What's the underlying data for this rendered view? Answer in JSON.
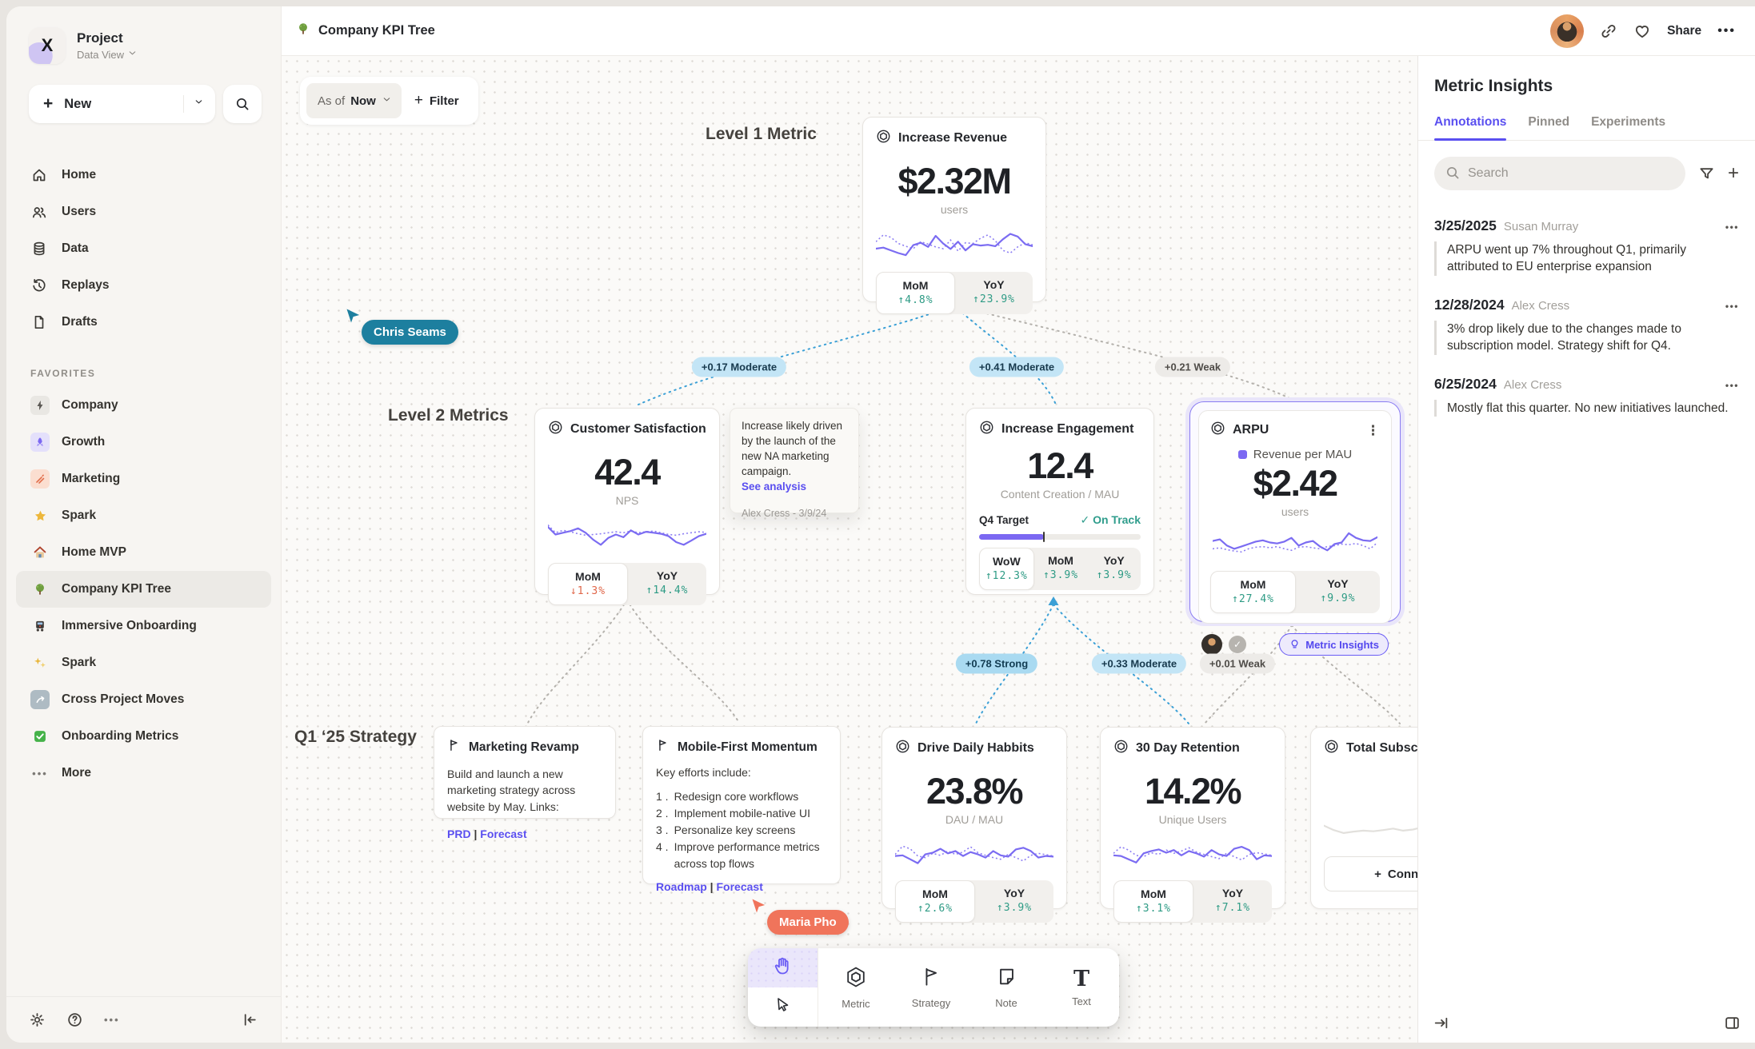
{
  "app": {
    "topbar": {
      "title": "Company KPI Tree",
      "share_label": "Share"
    },
    "sidebar": {
      "project": {
        "name": "Project",
        "view": "Data View"
      },
      "new_label": "New",
      "nav": [
        {
          "icon": "home",
          "label": "Home"
        },
        {
          "icon": "users",
          "label": "Users"
        },
        {
          "icon": "data",
          "label": "Data"
        },
        {
          "icon": "replays",
          "label": "Replays"
        },
        {
          "icon": "drafts",
          "label": "Drafts"
        }
      ],
      "favorites_label": "FAVORITES",
      "favorites": [
        {
          "icon": "bolt",
          "label": "Company"
        },
        {
          "icon": "rocket",
          "label": "Growth"
        },
        {
          "icon": "marketing",
          "label": "Marketing"
        },
        {
          "icon": "star",
          "label": "Spark"
        },
        {
          "icon": "house",
          "label": "Home MVP"
        },
        {
          "icon": "tree",
          "label": "Company KPI Tree",
          "active": true
        },
        {
          "icon": "train",
          "label": "Immersive Onboarding"
        },
        {
          "icon": "sparkles",
          "label": "Spark"
        },
        {
          "icon": "wave",
          "label": "Cross Project Moves"
        },
        {
          "icon": "check",
          "label": "Onboarding Metrics"
        },
        {
          "icon": "dots",
          "label": "More"
        }
      ]
    },
    "canvas": {
      "asof_label": "As of",
      "asof_value": "Now",
      "filter_label": "Filter",
      "level1_label": "Level 1 Metric",
      "level2_label": "Level 2 Metrics",
      "strategy_label": "Q1 ‘25 Strategy",
      "cursors": [
        {
          "name": "Chris Seams",
          "color": "#1d7f9f"
        },
        {
          "name": "Maria Pho",
          "color": "#f0745b"
        }
      ],
      "chips": [
        {
          "label": "+0.17 Moderate",
          "strength": "moderate"
        },
        {
          "label": "+0.41 Moderate",
          "strength": "moderate"
        },
        {
          "label": "+0.21 Weak",
          "strength": "weak"
        },
        {
          "label": "+0.78 Strong",
          "strength": "strong"
        },
        {
          "label": "+0.33 Moderate",
          "strength": "moderate"
        },
        {
          "label": "+0.01 Weak",
          "strength": "weak"
        }
      ],
      "toolbar": {
        "metric_label": "Metric",
        "strategy_label": "Strategy",
        "note_label": "Note",
        "text_label": "Text"
      }
    },
    "cards": {
      "revenue": {
        "title": "Increase Revenue",
        "value": "$2.32M",
        "unit": "users",
        "stats": [
          {
            "label": "MoM",
            "value": "↑4.8%",
            "dir": "up"
          },
          {
            "label": "YoY",
            "value": "↑23.9%",
            "dir": "up"
          }
        ],
        "sparkline": {
          "solid": [
            0.35,
            0.38,
            0.3,
            0.22,
            0.16,
            0.45,
            0.52,
            0.4,
            0.72,
            0.5,
            0.34,
            0.55,
            0.3,
            0.48,
            0.44,
            0.46,
            0.42,
            0.62,
            0.78,
            0.7,
            0.48,
            0.42
          ],
          "dotted": [
            0.55,
            0.75,
            0.68,
            0.5,
            0.42,
            0.35,
            0.55,
            0.48,
            0.4,
            0.35,
            0.6,
            0.28,
            0.52,
            0.5,
            0.65,
            0.75,
            0.58,
            0.3,
            0.22,
            0.4,
            0.52,
            0.46
          ]
        }
      },
      "satisfaction": {
        "title": "Customer Satisfaction",
        "value": "42.4",
        "unit": "NPS",
        "stats": [
          {
            "label": "MoM",
            "value": "↓1.3%",
            "dir": "down"
          },
          {
            "label": "YoY",
            "value": "↑14.4%",
            "dir": "up"
          }
        ],
        "sparkline": {
          "solid": [
            0.72,
            0.5,
            0.55,
            0.6,
            0.68,
            0.55,
            0.35,
            0.2,
            0.4,
            0.5,
            0.42,
            0.62,
            0.5,
            0.58,
            0.55,
            0.52,
            0.45,
            0.28,
            0.2,
            0.32,
            0.45,
            0.52
          ],
          "dotted": [
            0.78,
            0.55,
            0.62,
            0.58,
            0.52,
            0.48,
            0.5,
            0.52,
            0.55,
            0.58,
            0.55,
            0.6,
            0.55,
            0.58,
            0.6,
            0.55,
            0.5,
            0.48,
            0.52,
            0.55,
            0.58,
            0.56
          ]
        }
      },
      "engagement": {
        "title": "Increase Engagement",
        "value": "12.4",
        "unit": "Content Creation / MAU",
        "target": {
          "label": "Q4 Target",
          "status": "On Track",
          "progress": 0.4
        },
        "stats": [
          {
            "label": "WoW",
            "value": "↑12.3%",
            "dir": "up"
          },
          {
            "label": "MoM",
            "value": "↑3.9%",
            "dir": "up"
          },
          {
            "label": "YoY",
            "value": "↑3.9%",
            "dir": "up"
          }
        ]
      },
      "arpu": {
        "title": "ARPU",
        "legend": "Revenue per MAU",
        "value": "$2.42",
        "unit": "users",
        "badge": "Metric Insights",
        "stats": [
          {
            "label": "MoM",
            "value": "↑27.4%",
            "dir": "up"
          },
          {
            "label": "YoY",
            "value": "↑9.9%",
            "dir": "up"
          }
        ],
        "sparkline": {
          "solid": [
            0.6,
            0.65,
            0.45,
            0.35,
            0.42,
            0.5,
            0.58,
            0.62,
            0.55,
            0.52,
            0.58,
            0.7,
            0.45,
            0.55,
            0.6,
            0.42,
            0.3,
            0.5,
            0.55,
            0.85,
            0.7,
            0.62,
            0.6,
            0.72
          ],
          "dotted": [
            0.35,
            0.38,
            0.32,
            0.28,
            0.25,
            0.35,
            0.4,
            0.42,
            0.38,
            0.42,
            0.35,
            0.3,
            0.4,
            0.42,
            0.38,
            0.35,
            0.42,
            0.45,
            0.5,
            0.48,
            0.52,
            0.45,
            0.35,
            0.55
          ]
        }
      },
      "note": {
        "text": "Increase likely driven by the launch of the new NA marketing campaign.",
        "link": "See analysis",
        "author": "Alex Cress - 3/9/24"
      },
      "marketing_revamp": {
        "title": "Marketing Revamp",
        "body": "Build and launch a new marketing strategy across website by May. Links:",
        "links": [
          "PRD",
          "Forecast"
        ]
      },
      "mobile_first": {
        "title": "Mobile-First Momentum",
        "intro": "Key efforts include:",
        "items": [
          "Redesign core workflows",
          "Implement mobile-native UI",
          "Personalize key screens",
          "Improve performance metrics across top flows"
        ],
        "links": [
          "Roadmap",
          "Forecast"
        ]
      },
      "daily_habits": {
        "title": "Drive Daily Habbits",
        "value": "23.8%",
        "unit": "DAU / MAU",
        "stats": [
          {
            "label": "MoM",
            "value": "↑2.6%",
            "dir": "up"
          },
          {
            "label": "YoY",
            "value": "↑3.9%",
            "dir": "up"
          }
        ],
        "sparkline": {
          "solid": [
            0.4,
            0.42,
            0.3,
            0.18,
            0.45,
            0.5,
            0.62,
            0.48,
            0.55,
            0.4,
            0.52,
            0.45,
            0.35,
            0.55,
            0.42,
            0.38,
            0.6,
            0.65,
            0.55,
            0.35,
            0.4,
            0.38
          ],
          "dotted": [
            0.45,
            0.7,
            0.62,
            0.4,
            0.35,
            0.48,
            0.42,
            0.55,
            0.45,
            0.52,
            0.68,
            0.5,
            0.42,
            0.35,
            0.3,
            0.45,
            0.35,
            0.25,
            0.42,
            0.48,
            0.44,
            0.4
          ]
        }
      },
      "retention": {
        "title": "30 Day Retention",
        "value": "14.2%",
        "unit": "Unique Users",
        "stats": [
          {
            "label": "MoM",
            "value": "↑3.1%",
            "dir": "up"
          },
          {
            "label": "YoY",
            "value": "↑7.1%",
            "dir": "up"
          }
        ],
        "sparkline": {
          "solid": [
            0.42,
            0.4,
            0.3,
            0.2,
            0.48,
            0.55,
            0.6,
            0.5,
            0.58,
            0.42,
            0.55,
            0.48,
            0.38,
            0.58,
            0.45,
            0.4,
            0.62,
            0.68,
            0.58,
            0.3,
            0.42,
            0.4
          ],
          "dotted": [
            0.48,
            0.68,
            0.58,
            0.42,
            0.38,
            0.5,
            0.45,
            0.58,
            0.48,
            0.55,
            0.65,
            0.52,
            0.45,
            0.38,
            0.32,
            0.48,
            0.38,
            0.28,
            0.45,
            0.5,
            0.46,
            0.42
          ]
        }
      },
      "total_sub": {
        "title": "Total Subscript",
        "connect_label": "Connec",
        "sparkline": {
          "solid": [
            0.55,
            0.4,
            0.3,
            0.35,
            0.38,
            0.36,
            0.4,
            0.45,
            0.38,
            0.42,
            0.5,
            0.44,
            0.4,
            0.48,
            0.42,
            0.45,
            0.5
          ]
        }
      }
    },
    "insights": {
      "title": "Metric Insights",
      "tabs": [
        {
          "label": "Annotations",
          "active": true
        },
        {
          "label": "Pinned"
        },
        {
          "label": "Experiments"
        }
      ],
      "search_placeholder": "Search",
      "annotations": [
        {
          "date": "3/25/2025",
          "author": "Susan Murray",
          "text": "ARPU went up 7% throughout Q1, primarily attributed to EU enterprise expansion"
        },
        {
          "date": "12/28/2024",
          "author": "Alex Cress",
          "text": "3% drop likely due to the changes made to subscription model. Strategy shift for Q4."
        },
        {
          "date": "6/25/2024",
          "author": "Alex Cress",
          "text": "Mostly flat this quarter. No new initiatives launched."
        }
      ]
    }
  }
}
